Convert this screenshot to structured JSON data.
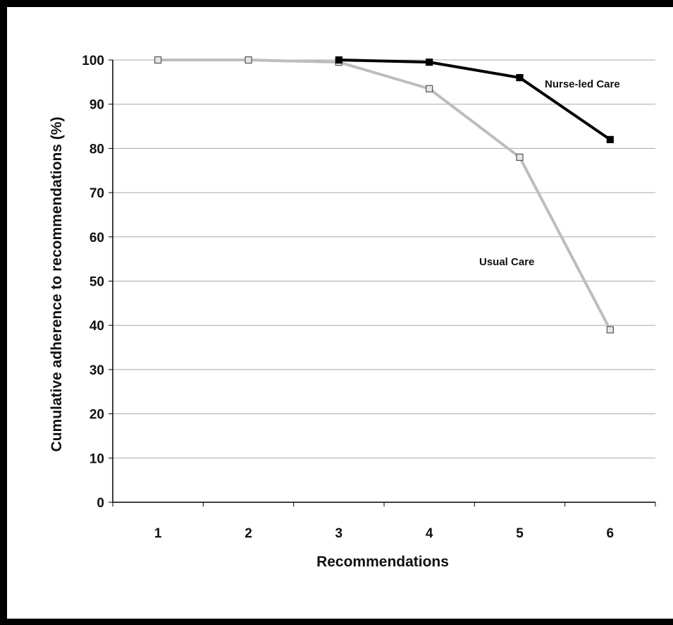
{
  "chart_data": {
    "type": "line",
    "title": "",
    "xlabel": "Recommendations",
    "ylabel": "Cumulative adherence to recommendations (%)",
    "categories": [
      "1",
      "2",
      "3",
      "4",
      "5",
      "6"
    ],
    "ylim": [
      0,
      100
    ],
    "yticks": [
      0,
      10,
      20,
      30,
      40,
      50,
      60,
      70,
      80,
      90,
      100
    ],
    "grid": true,
    "legend": "none (direct labels near lines)",
    "series": [
      {
        "name": "Nurse-led Care",
        "color": "#000000",
        "marker_fill": "#000000",
        "values": [
          null,
          null,
          100,
          99.5,
          96,
          82
        ]
      },
      {
        "name": "Usual Care",
        "color": "#bdbdbd",
        "marker_fill": "#e6e6e6",
        "values": [
          100,
          100,
          99.5,
          93.5,
          78,
          39
        ]
      }
    ]
  }
}
